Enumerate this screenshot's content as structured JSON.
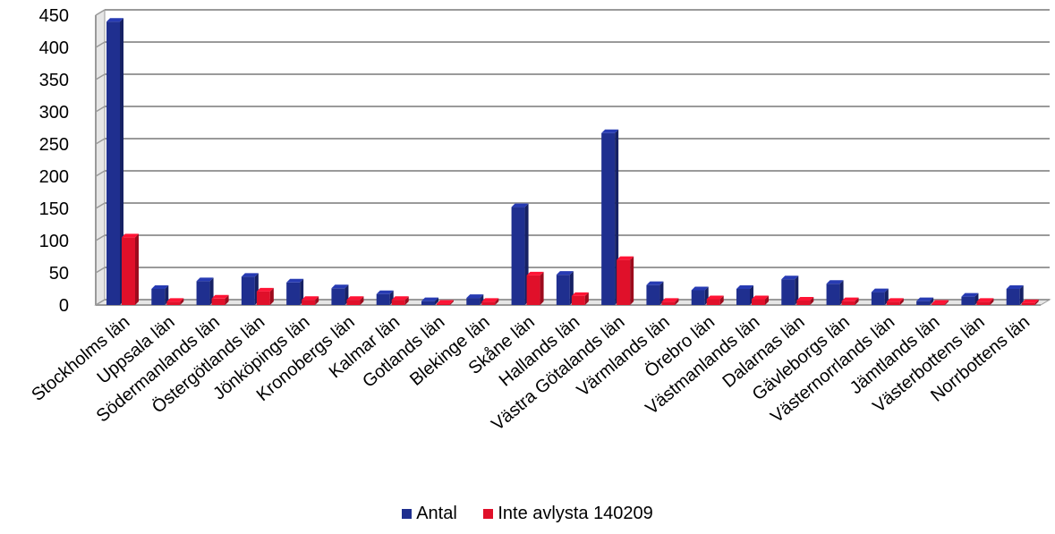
{
  "chart_data": {
    "type": "bar",
    "categories": [
      "Stockholms län",
      "Uppsala län",
      "Södermanlands län",
      "Östergötlands län",
      "Jönköpings län",
      "Kronobergs län",
      "Kalmar län",
      "Gotlands län",
      "Blekinge län",
      "Skåne län",
      "Hallands län",
      "Västra Götalands län",
      "Värmlands län",
      "Örebro län",
      "Västmanlands län",
      "Dalarnas län",
      "Gävleborgs län",
      "Västernorrlands län",
      "Jämtlands län",
      "Västerbottens län",
      "Norrbottens län"
    ],
    "series": [
      {
        "name": "Antal",
        "color": "#1f2f8f",
        "values": [
          440,
          25,
          37,
          44,
          35,
          26,
          17,
          6,
          11,
          152,
          47,
          267,
          31,
          23,
          25,
          40,
          33,
          20,
          6,
          13,
          25
        ]
      },
      {
        "name": "Inte avlysta 140209",
        "color": "#e0102a",
        "values": [
          105,
          5,
          10,
          21,
          8,
          8,
          8,
          2,
          5,
          46,
          14,
          70,
          5,
          9,
          9,
          7,
          6,
          5,
          2,
          5,
          3
        ]
      }
    ],
    "ylim": [
      0,
      450
    ],
    "yticks": [
      "0",
      "50",
      "100",
      "150",
      "200",
      "250",
      "300",
      "350",
      "400",
      "450"
    ],
    "grid": true,
    "legend_position": "bottom"
  }
}
